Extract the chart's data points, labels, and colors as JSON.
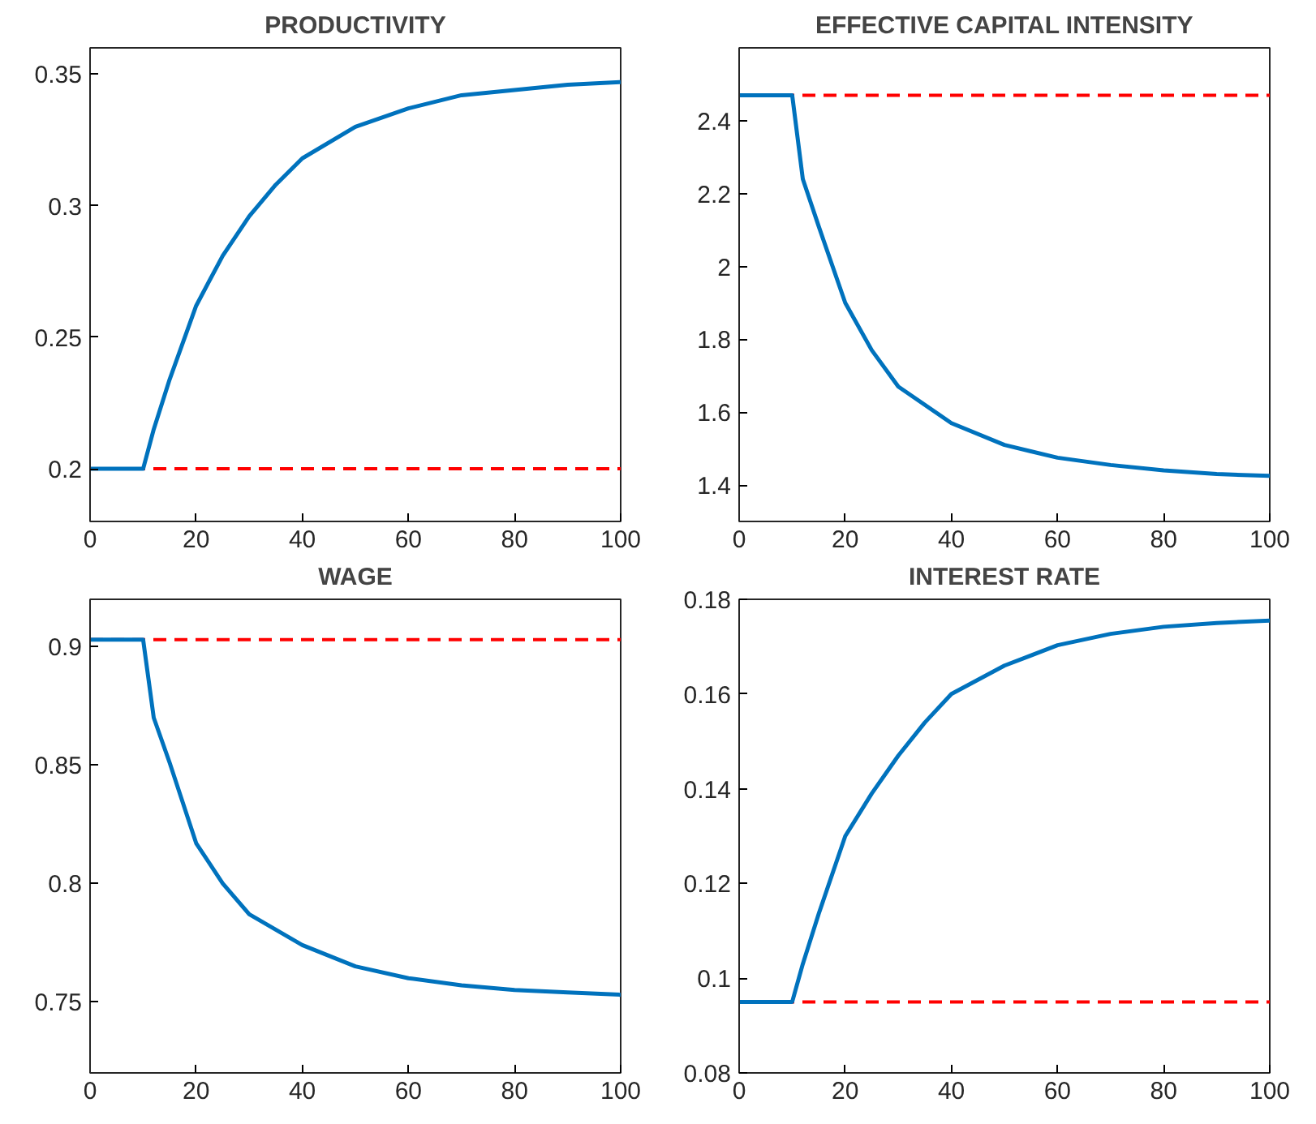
{
  "chart_data": [
    {
      "type": "line",
      "title": "PRODUCTIVITY",
      "x": [
        0,
        5,
        10,
        12,
        15,
        20,
        25,
        30,
        35,
        40,
        50,
        60,
        70,
        80,
        90,
        100
      ],
      "xlim": [
        0,
        100
      ],
      "xticks": [
        0,
        20,
        40,
        60,
        80,
        100
      ],
      "ylim": [
        0.18,
        0.36
      ],
      "yticks": [
        0.2,
        0.25,
        0.3,
        0.35
      ],
      "grid": false,
      "series": [
        {
          "color": "#0072bd",
          "values": [
            0.2,
            0.2,
            0.2,
            0.215,
            0.234,
            0.262,
            0.281,
            0.296,
            0.308,
            0.318,
            0.33,
            0.337,
            0.342,
            0.344,
            0.346,
            0.347
          ]
        }
      ],
      "ref_lines": [
        {
          "axis": "y",
          "value": 0.2,
          "color": "#ff0000",
          "line_style": "dashed"
        }
      ]
    },
    {
      "type": "line",
      "title": "EFFECTIVE CAPITAL INTENSITY",
      "x": [
        0,
        5,
        10,
        12,
        15,
        20,
        25,
        30,
        40,
        50,
        60,
        70,
        80,
        90,
        100
      ],
      "xlim": [
        0,
        100
      ],
      "xticks": [
        0,
        20,
        40,
        60,
        80,
        100
      ],
      "ylim": [
        1.3,
        2.6
      ],
      "yticks": [
        1.4,
        1.6,
        1.8,
        2,
        2.2,
        2.4
      ],
      "grid": false,
      "series": [
        {
          "color": "#0072bd",
          "values": [
            2.47,
            2.47,
            2.47,
            2.24,
            2.11,
            1.9,
            1.77,
            1.67,
            1.57,
            1.51,
            1.475,
            1.455,
            1.44,
            1.43,
            1.425
          ]
        }
      ],
      "ref_lines": [
        {
          "axis": "y",
          "value": 2.47,
          "color": "#ff0000",
          "line_style": "dashed"
        }
      ]
    },
    {
      "type": "line",
      "title": "WAGE",
      "x": [
        0,
        5,
        10,
        12,
        15,
        20,
        25,
        30,
        40,
        50,
        60,
        70,
        80,
        90,
        100
      ],
      "xlim": [
        0,
        100
      ],
      "xticks": [
        0,
        20,
        40,
        60,
        80,
        100
      ],
      "ylim": [
        0.72,
        0.92
      ],
      "yticks": [
        0.75,
        0.8,
        0.85,
        0.9
      ],
      "grid": false,
      "series": [
        {
          "color": "#0072bd",
          "values": [
            0.903,
            0.903,
            0.903,
            0.87,
            0.851,
            0.817,
            0.8,
            0.787,
            0.774,
            0.765,
            0.76,
            0.757,
            0.755,
            0.754,
            0.753
          ]
        }
      ],
      "ref_lines": [
        {
          "axis": "y",
          "value": 0.903,
          "color": "#ff0000",
          "line_style": "dashed"
        }
      ]
    },
    {
      "type": "line",
      "title": "INTEREST RATE",
      "x": [
        0,
        5,
        10,
        12,
        15,
        20,
        25,
        30,
        35,
        40,
        50,
        60,
        70,
        80,
        90,
        100
      ],
      "xlim": [
        0,
        100
      ],
      "xticks": [
        0,
        20,
        40,
        60,
        80,
        100
      ],
      "ylim": [
        0.08,
        0.18
      ],
      "yticks": [
        0.08,
        0.1,
        0.12,
        0.14,
        0.16,
        0.18
      ],
      "grid": false,
      "series": [
        {
          "color": "#0072bd",
          "values": [
            0.095,
            0.095,
            0.095,
            0.103,
            0.1136,
            0.13,
            0.139,
            0.147,
            0.154,
            0.16,
            0.166,
            0.1703,
            0.1727,
            0.1742,
            0.175,
            0.1755
          ]
        }
      ],
      "ref_lines": [
        {
          "axis": "y",
          "value": 0.095,
          "color": "#ff0000",
          "line_style": "dashed"
        }
      ]
    }
  ]
}
